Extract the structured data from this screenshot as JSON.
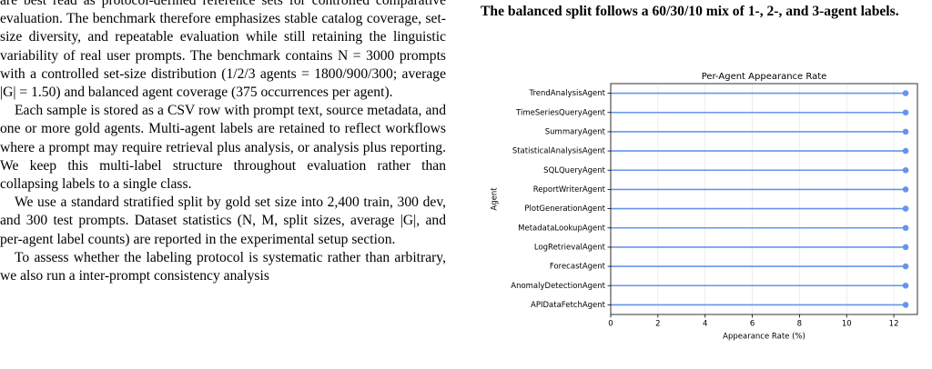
{
  "paper": {
    "left_paragraphs": [
      "are best read as protocol-defined reference sets for controlled comparative evaluation. The benchmark therefore emphasizes stable catalog coverage, set-size diversity, and repeatable evaluation while still retaining the linguistic variability of real user prompts. The benchmark contains N = 3000 prompts with a controlled set-size distribution (1/2/3 agents = 1800/900/300; average |G| = 1.50) and balanced agent coverage (375 occurrences per agent).",
      "Each sample is stored as a CSV row with prompt text, source metadata, and one or more gold agents. Multi-agent labels are retained to reflect workflows where a prompt may require retrieval plus analysis, or analysis plus reporting. We keep this multi-label structure throughout evaluation rather than collapsing labels to a single class.",
      "We use a standard stratified split by gold set size into 2,400 train, 300 dev, and 300 test prompts. Dataset statistics (N, M, split sizes, average |G|, and per-agent label counts) are reported in the experimental setup section.",
      "To assess whether the labeling protocol is systematic rather than arbitrary, we also run a inter-prompt consistency analysis"
    ],
    "right_caption": "The balanced split follows a 60/30/10 mix of 1-, 2-, and 3-agent labels."
  },
  "chart_data": {
    "type": "lollipop",
    "orientation": "horizontal",
    "title": "Per-Agent Appearance Rate",
    "x_label": "Appearance Rate (%)",
    "y_label": "Agent",
    "categories": [
      "TrendAnalysisAgent",
      "TimeSeriesQueryAgent",
      "SummaryAgent",
      "StatisticalAnalysisAgent",
      "SQLQueryAgent",
      "ReportWriterAgent",
      "PlotGenerationAgent",
      "MetadataLookupAgent",
      "LogRetrievalAgent",
      "ForecastAgent",
      "AnomalyDetectionAgent",
      "APIDataFetchAgent"
    ],
    "values": [
      12.5,
      12.5,
      12.5,
      12.5,
      12.5,
      12.5,
      12.5,
      12.5,
      12.5,
      12.5,
      12.5,
      12.5
    ],
    "color": "#6495ed",
    "xlim": [
      0,
      13
    ],
    "xticks": [
      0,
      2,
      4,
      6,
      8,
      10,
      12
    ],
    "grid": true
  }
}
